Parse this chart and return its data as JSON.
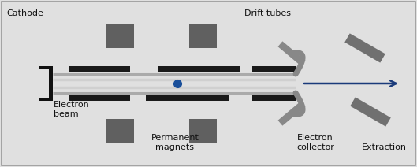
{
  "bg_color": "#e0e0e0",
  "border_color": "#999999",
  "drift_tube_color": "#1a1a1a",
  "magnet_color": "#606060",
  "collector_color": "#888888",
  "arrow_color": "#1a3a7a",
  "ion_color": "#1a4f9a",
  "cathode_color": "#111111",
  "beam_outer_color": "#aaaaaa",
  "beam_inner_color": "#d0d0d0",
  "labels": {
    "cathode": "Cathode",
    "drift_tubes": "Drift tubes",
    "electron_beam": "Electron\nbeam",
    "permanent_magnets": "Permanent\nmagnets",
    "electron_collector": "Electron\ncollector",
    "extraction": "Extraction"
  },
  "fig_width": 5.29,
  "fig_height": 2.12,
  "dpi": 100
}
